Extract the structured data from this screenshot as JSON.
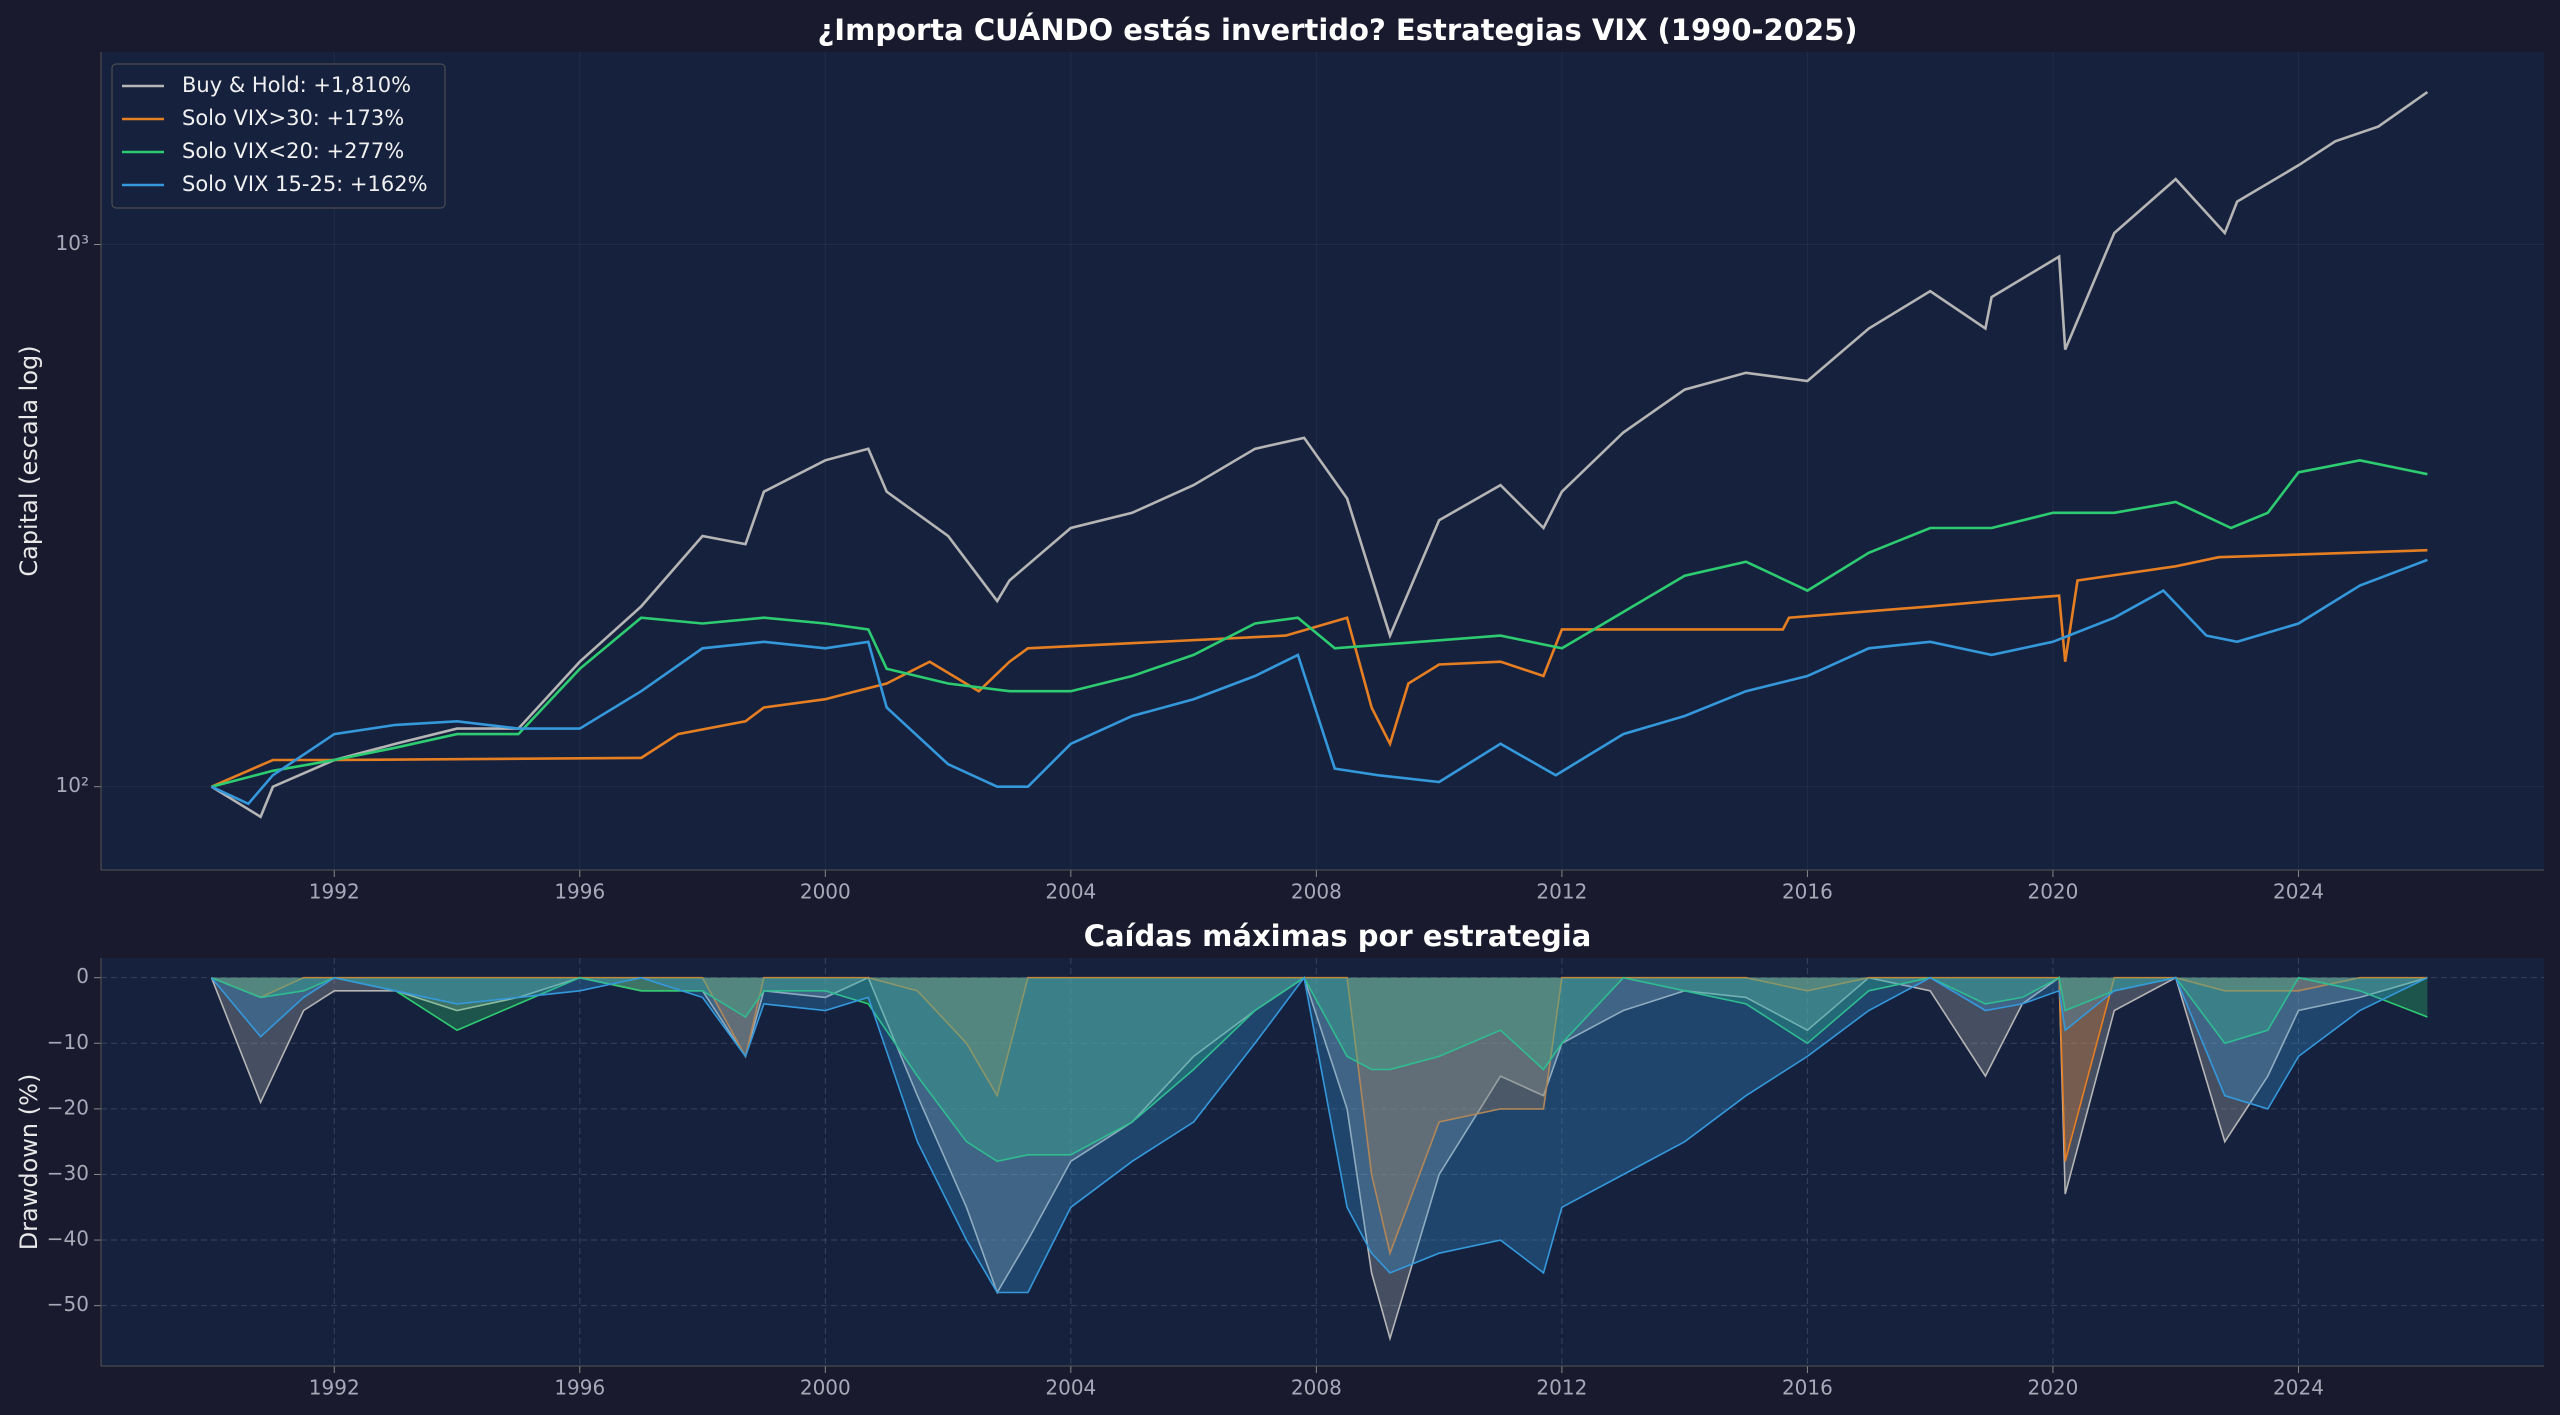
{
  "chart_data": [
    {
      "type": "line",
      "title": "¿Importa CUÁNDO estás invertido? Estrategias VIX (1990-2025)",
      "ylabel": "Capital (escala log)",
      "yscale": "log",
      "grid": true,
      "legend": "upper left",
      "xlim": [
        1988.2,
        2028.0
      ],
      "xticks": [
        1992,
        1996,
        2000,
        2004,
        2008,
        2012,
        2016,
        2020,
        2024
      ],
      "ylim": [
        70.2,
        2265
      ],
      "yticks": [
        {
          "value": 100,
          "label": "10²"
        },
        {
          "value": 1000,
          "label": "10³"
        }
      ],
      "series": [
        {
          "name": "Buy & Hold: +1,810%",
          "color": "#b5b5b5",
          "x": [
            1990,
            1990.8,
            1991,
            1992,
            1993,
            1994,
            1995,
            1996,
            1997,
            1998,
            1998.7,
            1999,
            2000,
            2000.7,
            2001,
            2002,
            2002.8,
            2003,
            2004,
            2005,
            2006,
            2007,
            2007.8,
            2008.5,
            2009.2,
            2010,
            2011,
            2011.7,
            2012,
            2013,
            2014,
            2015,
            2016,
            2017,
            2018,
            2018.9,
            2019,
            2020.1,
            2020.2,
            2021,
            2022,
            2022.8,
            2023,
            2024,
            2024.6,
            2025.3,
            2026.1
          ],
          "values": [
            100,
            88,
            100,
            112,
            120,
            128,
            128,
            170,
            215,
            290,
            280,
            350,
            400,
            420,
            350,
            290,
            220,
            240,
            300,
            320,
            360,
            420,
            440,
            340,
            190,
            310,
            360,
            300,
            350,
            450,
            540,
            580,
            560,
            700,
            820,
            700,
            800,
            950,
            640,
            1050,
            1320,
            1050,
            1200,
            1400,
            1550,
            1650,
            1910
          ]
        },
        {
          "name": "Solo VIX>30: +173%",
          "color": "#e67e22",
          "x": [
            1990,
            1991,
            1992,
            1997,
            1997.6,
            1998.7,
            1999,
            2000,
            2000.5,
            2001,
            2001.7,
            2002.5,
            2003,
            2003.3,
            2007.5,
            2008.5,
            2008.9,
            2009.2,
            2009.5,
            2010,
            2011,
            2011.7,
            2012,
            2015.6,
            2015.7,
            2018,
            2019,
            2020.1,
            2020.2,
            2020.4,
            2022,
            2022.7,
            2026.1
          ],
          "values": [
            100,
            112,
            112,
            113,
            125,
            132,
            140,
            145,
            150,
            155,
            170,
            150,
            170,
            180,
            190,
            205,
            140,
            120,
            155,
            168,
            170,
            160,
            195,
            195,
            205,
            215,
            220,
            225,
            170,
            240,
            255,
            265,
            273
          ]
        },
        {
          "name": "Solo VIX<20: +277%",
          "color": "#2ecc71",
          "x": [
            1990,
            1991,
            1992,
            1993,
            1994,
            1995,
            1996,
            1997,
            1998,
            1999,
            2000,
            2000.7,
            2001,
            2002,
            2003,
            2004,
            2005,
            2006,
            2007,
            2007.7,
            2008.3,
            2011,
            2012,
            2013,
            2014,
            2015,
            2016,
            2017,
            2018,
            2019,
            2020,
            2021,
            2022,
            2022.9,
            2023.5,
            2024,
            2025,
            2026.1
          ],
          "values": [
            100,
            107,
            112,
            118,
            125,
            125,
            165,
            205,
            200,
            205,
            200,
            195,
            165,
            155,
            150,
            150,
            160,
            175,
            200,
            205,
            180,
            190,
            180,
            210,
            245,
            260,
            230,
            270,
            300,
            300,
            320,
            320,
            335,
            300,
            320,
            380,
            400,
            377
          ]
        },
        {
          "name": "Solo VIX 15-25: +162%",
          "color": "#3498db",
          "x": [
            1990,
            1990.6,
            1991,
            1992,
            1993,
            1994,
            1995,
            1996,
            1997,
            1998,
            1999,
            2000,
            2000.7,
            2001,
            2002,
            2002.8,
            2003.3,
            2004,
            2005,
            2006,
            2007,
            2007.7,
            2008.3,
            2009,
            2010,
            2011,
            2011.9,
            2013,
            2014,
            2015,
            2016,
            2017,
            2018,
            2019,
            2020,
            2021,
            2021.8,
            2022.5,
            2023,
            2024,
            2025,
            2026.1
          ],
          "values": [
            100,
            93,
            105,
            125,
            130,
            132,
            128,
            128,
            150,
            180,
            185,
            180,
            185,
            140,
            110,
            100,
            100,
            120,
            135,
            145,
            160,
            175,
            108,
            105,
            102,
            120,
            105,
            125,
            135,
            150,
            160,
            180,
            185,
            175,
            185,
            205,
            230,
            190,
            185,
            200,
            235,
            262
          ]
        }
      ]
    },
    {
      "type": "area",
      "title": "Caídas máximas por estrategia",
      "ylabel": "Drawdown (%)",
      "grid": true,
      "xlim": [
        1988.2,
        2028.0
      ],
      "xticks": [
        1992,
        1996,
        2000,
        2004,
        2008,
        2012,
        2016,
        2020,
        2024
      ],
      "ylim": [
        -59.2,
        3
      ],
      "yticks": [
        0,
        {
          "value": -10,
          "label": "−10"
        },
        {
          "value": -20,
          "label": "−20"
        },
        {
          "value": -30,
          "label": "−30"
        },
        {
          "value": -40,
          "label": "−40"
        },
        {
          "value": -50,
          "label": "−50"
        }
      ],
      "x": [
        1990,
        1990.8,
        1991.5,
        1992,
        1993,
        1994,
        1995,
        1996,
        1997,
        1998,
        1998.7,
        1999,
        2000,
        2000.7,
        2001.5,
        2002.3,
        2002.8,
        2003.3,
        2004,
        2005,
        2006,
        2007,
        2007.8,
        2008.5,
        2008.9,
        2009.2,
        2010,
        2011,
        2011.7,
        2012,
        2013,
        2014,
        2015,
        2016,
        2017,
        2018,
        2018.9,
        2019.5,
        2020.1,
        2020.2,
        2021,
        2022,
        2022.8,
        2023.5,
        2024,
        2025,
        2026.1
      ],
      "series": [
        {
          "color": "#b5b5b5",
          "values": [
            0,
            -19,
            -5,
            -2,
            -2,
            -5,
            -3,
            0,
            -2,
            -2,
            -12,
            -2,
            -3,
            0,
            -18,
            -35,
            -48,
            -40,
            -28,
            -22,
            -12,
            -5,
            0,
            -20,
            -45,
            -55,
            -30,
            -15,
            -18,
            -10,
            -5,
            -2,
            -3,
            -8,
            0,
            -2,
            -15,
            -4,
            0,
            -33,
            -5,
            0,
            -25,
            -15,
            -5,
            -3,
            0
          ]
        },
        {
          "color": "#e67e22",
          "values": [
            0,
            -3,
            0,
            0,
            0,
            0,
            0,
            0,
            0,
            0,
            -12,
            0,
            0,
            0,
            -2,
            -10,
            -18,
            0,
            0,
            0,
            0,
            0,
            0,
            0,
            -30,
            -42,
            -22,
            -20,
            -20,
            0,
            0,
            0,
            0,
            -2,
            0,
            0,
            0,
            0,
            0,
            -28,
            0,
            0,
            -2,
            -2,
            -2,
            0,
            0
          ]
        },
        {
          "color": "#2ecc71",
          "values": [
            0,
            -3,
            -2,
            0,
            -2,
            -8,
            -4,
            0,
            -2,
            -2,
            -6,
            -2,
            -2,
            -4,
            -15,
            -25,
            -28,
            -27,
            -27,
            -22,
            -14,
            -5,
            0,
            -12,
            -14,
            -14,
            -12,
            -8,
            -14,
            -10,
            0,
            -2,
            -4,
            -10,
            -2,
            0,
            -4,
            -3,
            0,
            -5,
            -2,
            0,
            -10,
            -8,
            0,
            -2,
            -6
          ]
        },
        {
          "color": "#3498db",
          "values": [
            0,
            -9,
            -3,
            0,
            -2,
            -4,
            -3,
            -2,
            0,
            -3,
            -12,
            -4,
            -5,
            -3,
            -25,
            -40,
            -48,
            -48,
            -35,
            -28,
            -22,
            -10,
            0,
            -35,
            -42,
            -45,
            -42,
            -40,
            -45,
            -35,
            -30,
            -25,
            -18,
            -12,
            -5,
            0,
            -5,
            -4,
            -2,
            -8,
            -2,
            0,
            -18,
            -20,
            -12,
            -5,
            0
          ]
        }
      ]
    }
  ]
}
